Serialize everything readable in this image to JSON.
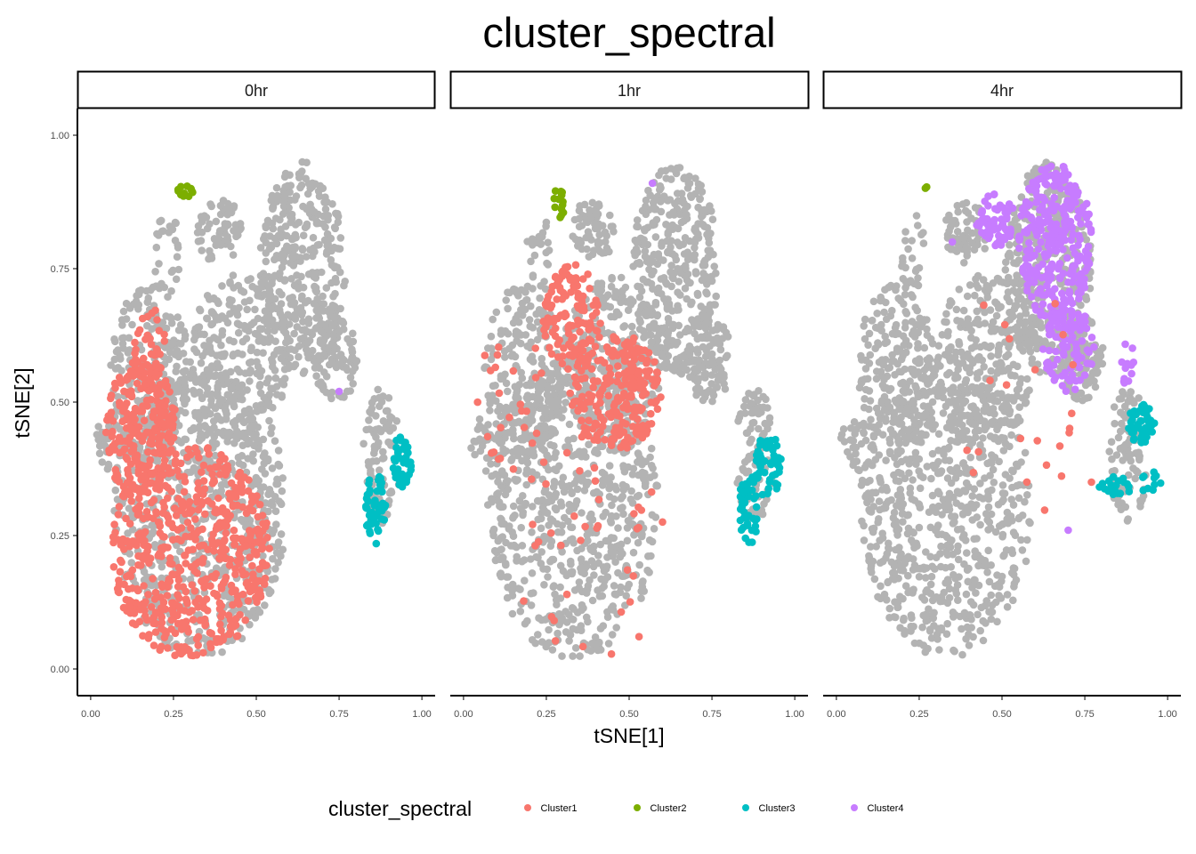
{
  "chart_data": {
    "type": "scatter",
    "title": "cluster_spectral",
    "xlabel": "tSNE[1]",
    "ylabel": "tSNE[2]",
    "xlim": [
      -0.04,
      1.04
    ],
    "ylim": [
      -0.05,
      1.05
    ],
    "x_ticks": [
      0,
      0.25,
      0.5,
      0.75,
      1
    ],
    "x_tick_labels": [
      "0.00",
      "0.25",
      "0.50",
      "0.75",
      "1.00"
    ],
    "y_ticks": [
      0,
      0.25,
      0.5,
      0.75,
      1
    ],
    "y_tick_labels": [
      "0.00",
      "0.25",
      "0.50",
      "0.75",
      "1.00"
    ],
    "grid": false,
    "facets": [
      "0hr",
      "1hr",
      "4hr"
    ],
    "background_color": "#b3b3b3",
    "legend": {
      "title": "cluster_spectral",
      "position": "bottom",
      "items": [
        {
          "name": "Cluster1",
          "color": "#F8766D"
        },
        {
          "name": "Cluster2",
          "color": "#7CAE00"
        },
        {
          "name": "Cluster3",
          "color": "#00BFC4"
        },
        {
          "name": "Cluster4",
          "color": "#C77CFF"
        }
      ]
    },
    "background_regions": [
      {
        "cx": 0.33,
        "cy": 0.3,
        "rx": 0.26,
        "ry": 0.28,
        "n": 700
      },
      {
        "cx": 0.18,
        "cy": 0.55,
        "rx": 0.12,
        "ry": 0.17,
        "n": 220
      },
      {
        "cx": 0.45,
        "cy": 0.58,
        "rx": 0.15,
        "ry": 0.16,
        "n": 260
      },
      {
        "cx": 0.64,
        "cy": 0.75,
        "rx": 0.13,
        "ry": 0.2,
        "n": 360
      },
      {
        "cx": 0.74,
        "cy": 0.58,
        "rx": 0.07,
        "ry": 0.08,
        "n": 90
      },
      {
        "cx": 0.39,
        "cy": 0.82,
        "rx": 0.07,
        "ry": 0.06,
        "n": 60
      },
      {
        "cx": 0.23,
        "cy": 0.78,
        "rx": 0.04,
        "ry": 0.08,
        "n": 25
      },
      {
        "cx": 0.88,
        "cy": 0.4,
        "rx": 0.06,
        "ry": 0.13,
        "n": 90
      },
      {
        "cx": 0.06,
        "cy": 0.42,
        "rx": 0.05,
        "ry": 0.05,
        "n": 30
      }
    ],
    "panels": [
      {
        "facet": "0hr",
        "regions": [
          {
            "cluster": "Cluster1",
            "cx": 0.3,
            "cy": 0.22,
            "rx": 0.24,
            "ry": 0.2,
            "n": 560
          },
          {
            "cluster": "Cluster1",
            "cx": 0.15,
            "cy": 0.45,
            "rx": 0.11,
            "ry": 0.13,
            "n": 220
          },
          {
            "cluster": "Cluster1",
            "cx": 0.18,
            "cy": 0.6,
            "rx": 0.05,
            "ry": 0.08,
            "n": 40
          },
          {
            "cluster": "Cluster2",
            "cx": 0.285,
            "cy": 0.895,
            "rx": 0.025,
            "ry": 0.012,
            "n": 12
          },
          {
            "cluster": "Cluster3",
            "cx": 0.86,
            "cy": 0.3,
            "rx": 0.03,
            "ry": 0.07,
            "n": 50
          },
          {
            "cluster": "Cluster3",
            "cx": 0.94,
            "cy": 0.39,
            "rx": 0.03,
            "ry": 0.05,
            "n": 45
          }
        ],
        "singles": [
          {
            "cluster": "Cluster4",
            "x": 0.75,
            "y": 0.52
          }
        ]
      },
      {
        "facet": "1hr",
        "regions": [
          {
            "cluster": "Cluster1",
            "cx": 0.46,
            "cy": 0.52,
            "rx": 0.14,
            "ry": 0.11,
            "n": 220
          },
          {
            "cluster": "Cluster1",
            "cx": 0.33,
            "cy": 0.66,
            "rx": 0.09,
            "ry": 0.1,
            "n": 130
          },
          {
            "cluster": "Cluster1",
            "cx": 0.15,
            "cy": 0.5,
            "rx": 0.11,
            "ry": 0.15,
            "n": 25
          },
          {
            "cluster": "Cluster1",
            "cx": 0.4,
            "cy": 0.22,
            "rx": 0.25,
            "ry": 0.22,
            "n": 40
          },
          {
            "cluster": "Cluster2",
            "cx": 0.285,
            "cy": 0.87,
            "rx": 0.02,
            "ry": 0.035,
            "n": 14
          },
          {
            "cluster": "Cluster3",
            "cx": 0.86,
            "cy": 0.3,
            "rx": 0.03,
            "ry": 0.07,
            "n": 45
          },
          {
            "cluster": "Cluster3",
            "cx": 0.92,
            "cy": 0.38,
            "rx": 0.04,
            "ry": 0.06,
            "n": 50
          }
        ],
        "singles": [
          {
            "cluster": "Cluster4",
            "x": 0.57,
            "y": 0.91
          }
        ]
      },
      {
        "facet": "4hr",
        "regions": [
          {
            "cluster": "Cluster4",
            "cx": 0.66,
            "cy": 0.8,
            "rx": 0.11,
            "ry": 0.15,
            "n": 300
          },
          {
            "cluster": "Cluster4",
            "cx": 0.48,
            "cy": 0.84,
            "rx": 0.06,
            "ry": 0.05,
            "n": 60
          },
          {
            "cluster": "Cluster4",
            "cx": 0.7,
            "cy": 0.6,
            "rx": 0.08,
            "ry": 0.08,
            "n": 90
          },
          {
            "cluster": "Cluster4",
            "cx": 0.88,
            "cy": 0.57,
            "rx": 0.02,
            "ry": 0.05,
            "n": 12
          },
          {
            "cluster": "Cluster3",
            "cx": 0.92,
            "cy": 0.46,
            "rx": 0.04,
            "ry": 0.04,
            "n": 50
          },
          {
            "cluster": "Cluster3",
            "cx": 0.84,
            "cy": 0.34,
            "rx": 0.05,
            "ry": 0.02,
            "n": 20
          },
          {
            "cluster": "Cluster3",
            "cx": 0.95,
            "cy": 0.35,
            "rx": 0.03,
            "ry": 0.03,
            "n": 10
          },
          {
            "cluster": "Cluster1",
            "cx": 0.55,
            "cy": 0.52,
            "rx": 0.2,
            "ry": 0.25,
            "n": 22
          },
          {
            "cluster": "Cluster2",
            "cx": 0.28,
            "cy": 0.905,
            "rx": 0.02,
            "ry": 0.006,
            "n": 2
          }
        ],
        "singles": [
          {
            "cluster": "Cluster4",
            "x": 0.7,
            "y": 0.26
          },
          {
            "cluster": "Cluster4",
            "x": 0.35,
            "y": 0.8
          },
          {
            "cluster": "Cluster1",
            "x": 0.77,
            "y": 0.35
          }
        ]
      }
    ]
  }
}
